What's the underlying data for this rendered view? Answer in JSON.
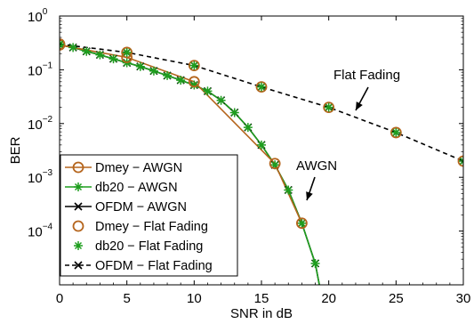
{
  "chart_data": {
    "type": "line",
    "xlabel": "SNR in dB",
    "ylabel": "BER",
    "yscale": "log",
    "xlim": [
      0,
      30
    ],
    "ylim": [
      1e-05,
      1
    ],
    "x_ticks": [
      "0",
      "5",
      "10",
      "15",
      "20",
      "25",
      "30"
    ],
    "y_ticks": [
      {
        "base": "10",
        "exp": "0"
      },
      {
        "base": "10",
        "exp": "−1"
      },
      {
        "base": "10",
        "exp": "−2"
      },
      {
        "base": "10",
        "exp": "−3"
      },
      {
        "base": "10",
        "exp": "−4"
      }
    ],
    "grid": false,
    "legend_position": "bottom-left",
    "annotations": [
      {
        "text": "Flat Fading",
        "target": "Flat Fading curve near SNR 21.5 dB"
      },
      {
        "text": "AWGN",
        "target": "AWGN curve near SNR 18.5 dB"
      }
    ],
    "series": [
      {
        "name": "Dmey − AWGN",
        "color": "#b5651d",
        "marker": "circle",
        "line": "solid",
        "x": [
          0,
          5,
          10,
          16,
          18
        ],
        "y": [
          0.29,
          0.17,
          0.06,
          0.0018,
          0.00014
        ]
      },
      {
        "name": "db20 − AWGN",
        "color": "#1e9e1e",
        "marker": "star",
        "line": "solid",
        "x": [
          0,
          1,
          2,
          3,
          4,
          5,
          6,
          7,
          8,
          9,
          10,
          11,
          12,
          13,
          14,
          15,
          16,
          17,
          18,
          19,
          19.3
        ],
        "y": [
          0.29,
          0.26,
          0.22,
          0.19,
          0.16,
          0.135,
          0.115,
          0.095,
          0.078,
          0.064,
          0.052,
          0.04,
          0.027,
          0.016,
          0.0085,
          0.004,
          0.0017,
          0.00058,
          0.00014,
          2.5e-05,
          1e-05
        ]
      },
      {
        "name": "OFDM − AWGN",
        "color": "#000000",
        "marker": "x",
        "line": "solid",
        "x": [
          0,
          1,
          2,
          3,
          4,
          5,
          6,
          7,
          8,
          9,
          10,
          11,
          12,
          13,
          14,
          15,
          16,
          17,
          18,
          19,
          19.3
        ],
        "y": [
          0.29,
          0.26,
          0.22,
          0.19,
          0.16,
          0.135,
          0.115,
          0.095,
          0.078,
          0.064,
          0.052,
          0.04,
          0.027,
          0.016,
          0.0085,
          0.004,
          0.0017,
          0.00058,
          0.00014,
          2.5e-05,
          1e-05
        ]
      },
      {
        "name": "Dmey − Flat Fading",
        "color": "#b5651d",
        "marker": "circle",
        "line": "none",
        "x": [
          0,
          5,
          10,
          15,
          20,
          25,
          30
        ],
        "y": [
          0.3,
          0.21,
          0.12,
          0.048,
          0.02,
          0.0068,
          0.002
        ]
      },
      {
        "name": "db20 − Flat Fading",
        "color": "#1e9e1e",
        "marker": "star",
        "line": "none",
        "x": [
          0,
          5,
          10,
          15,
          20,
          25,
          30
        ],
        "y": [
          0.3,
          0.21,
          0.12,
          0.048,
          0.02,
          0.0068,
          0.002
        ]
      },
      {
        "name": "OFDM − Flat Fading",
        "color": "#000000",
        "marker": "x",
        "line": "dashed",
        "x": [
          0,
          5,
          10,
          15,
          20,
          25,
          30
        ],
        "y": [
          0.3,
          0.21,
          0.12,
          0.048,
          0.02,
          0.0068,
          0.002
        ]
      }
    ]
  }
}
